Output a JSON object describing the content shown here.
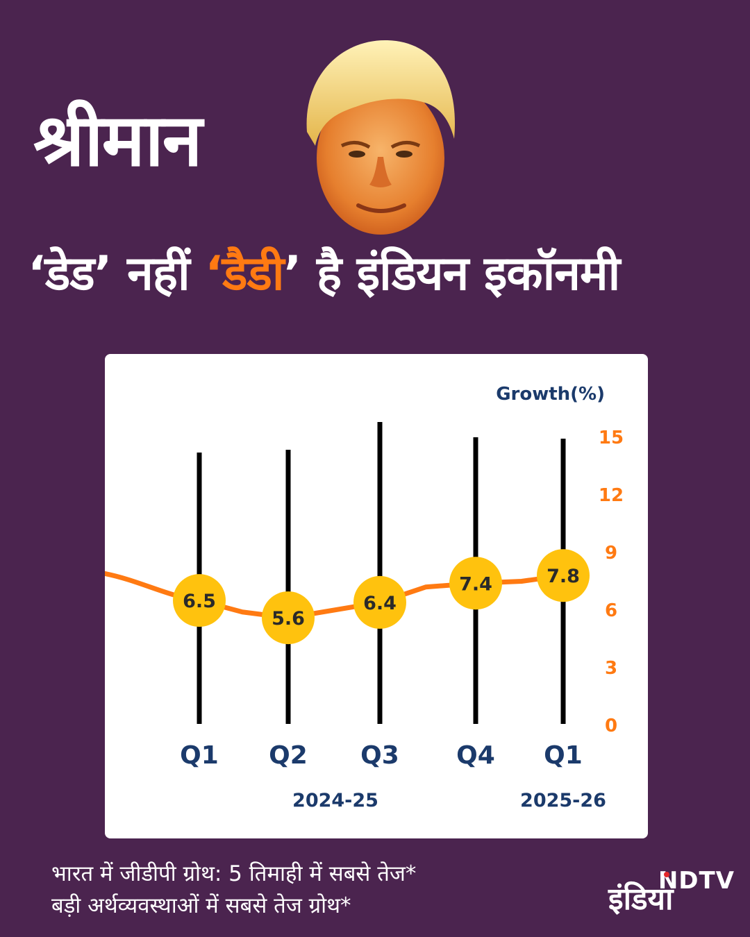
{
  "headline": {
    "title": "श्रीमान",
    "sub_part1": "‘डेड’ नहीं ",
    "sub_highlight": "‘डैडी",
    "sub_part3": "’ है इंडियन इकॉनमी",
    "highlight_color": "#ff7a12"
  },
  "chart_data": {
    "type": "line",
    "ylabel": "Growth(%)",
    "ylim": [
      0,
      15
    ],
    "y_ticks": [
      "15",
      "12",
      "9",
      "6",
      "3",
      "0"
    ],
    "categories": [
      "Q1",
      "Q2",
      "Q3",
      "Q4",
      "Q1"
    ],
    "values": [
      6.5,
      5.6,
      6.4,
      7.4,
      7.8
    ],
    "data_labels": [
      "6.5",
      "5.6",
      "6.4",
      "7.4",
      "7.8"
    ],
    "groups": [
      {
        "label": "2024-25",
        "categories": [
          "Q1",
          "Q2",
          "Q3",
          "Q4"
        ]
      },
      {
        "label": "2025-26",
        "categories": [
          "Q1"
        ]
      }
    ],
    "colors": {
      "line": "#ff7a12",
      "marker": "#ffc20e",
      "bars": "#000000",
      "axis_labels": "#1b3a6b",
      "tick_labels": "#ff7a12"
    }
  },
  "footer": {
    "line1": "भारत में जीडीपी ग्रोथ: 5 तिमाही में सबसे तेज*",
    "line2": "बड़ी अर्थव्यवस्थाओं में सबसे तेज ग्रोथ*"
  },
  "logo": {
    "top": "NDTV",
    "bottom": "इंडिया"
  }
}
